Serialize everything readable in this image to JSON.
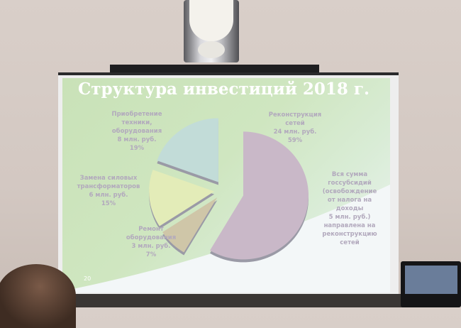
{
  "slide": {
    "title": "Структура инвестиций 2018 г.",
    "page_number": "20",
    "note": [
      "Вся сумма",
      "госсубсидий",
      "(освобождение",
      "от налога на",
      "доходы",
      "5 млн. руб.)",
      "направлена на",
      "реконструкцию",
      "сетей"
    ]
  },
  "chart_data": {
    "type": "pie",
    "title": "Структура инвестиций 2018 г.",
    "slices": [
      {
        "label": [
          "Реконструкция",
          "сетей",
          "24 млн. руб.",
          "59%"
        ],
        "value": 24,
        "percent": 59,
        "color": "#c9b8c8"
      },
      {
        "label": [
          "Ремонт",
          "оборудования",
          "3 млн. руб.",
          "7%"
        ],
        "value": 3,
        "percent": 7,
        "color": "#cfc6a8"
      },
      {
        "label": [
          "Замена силовых",
          "трансформаторов",
          "6 млн. руб.",
          "15%"
        ],
        "value": 6,
        "percent": 15,
        "color": "#e3ecb8"
      },
      {
        "label": [
          "Приобретение",
          "техники,",
          "оборудования",
          "8 млн. руб.",
          "19%"
        ],
        "value": 8,
        "percent": 19,
        "color": "#c2dcd8"
      }
    ]
  }
}
